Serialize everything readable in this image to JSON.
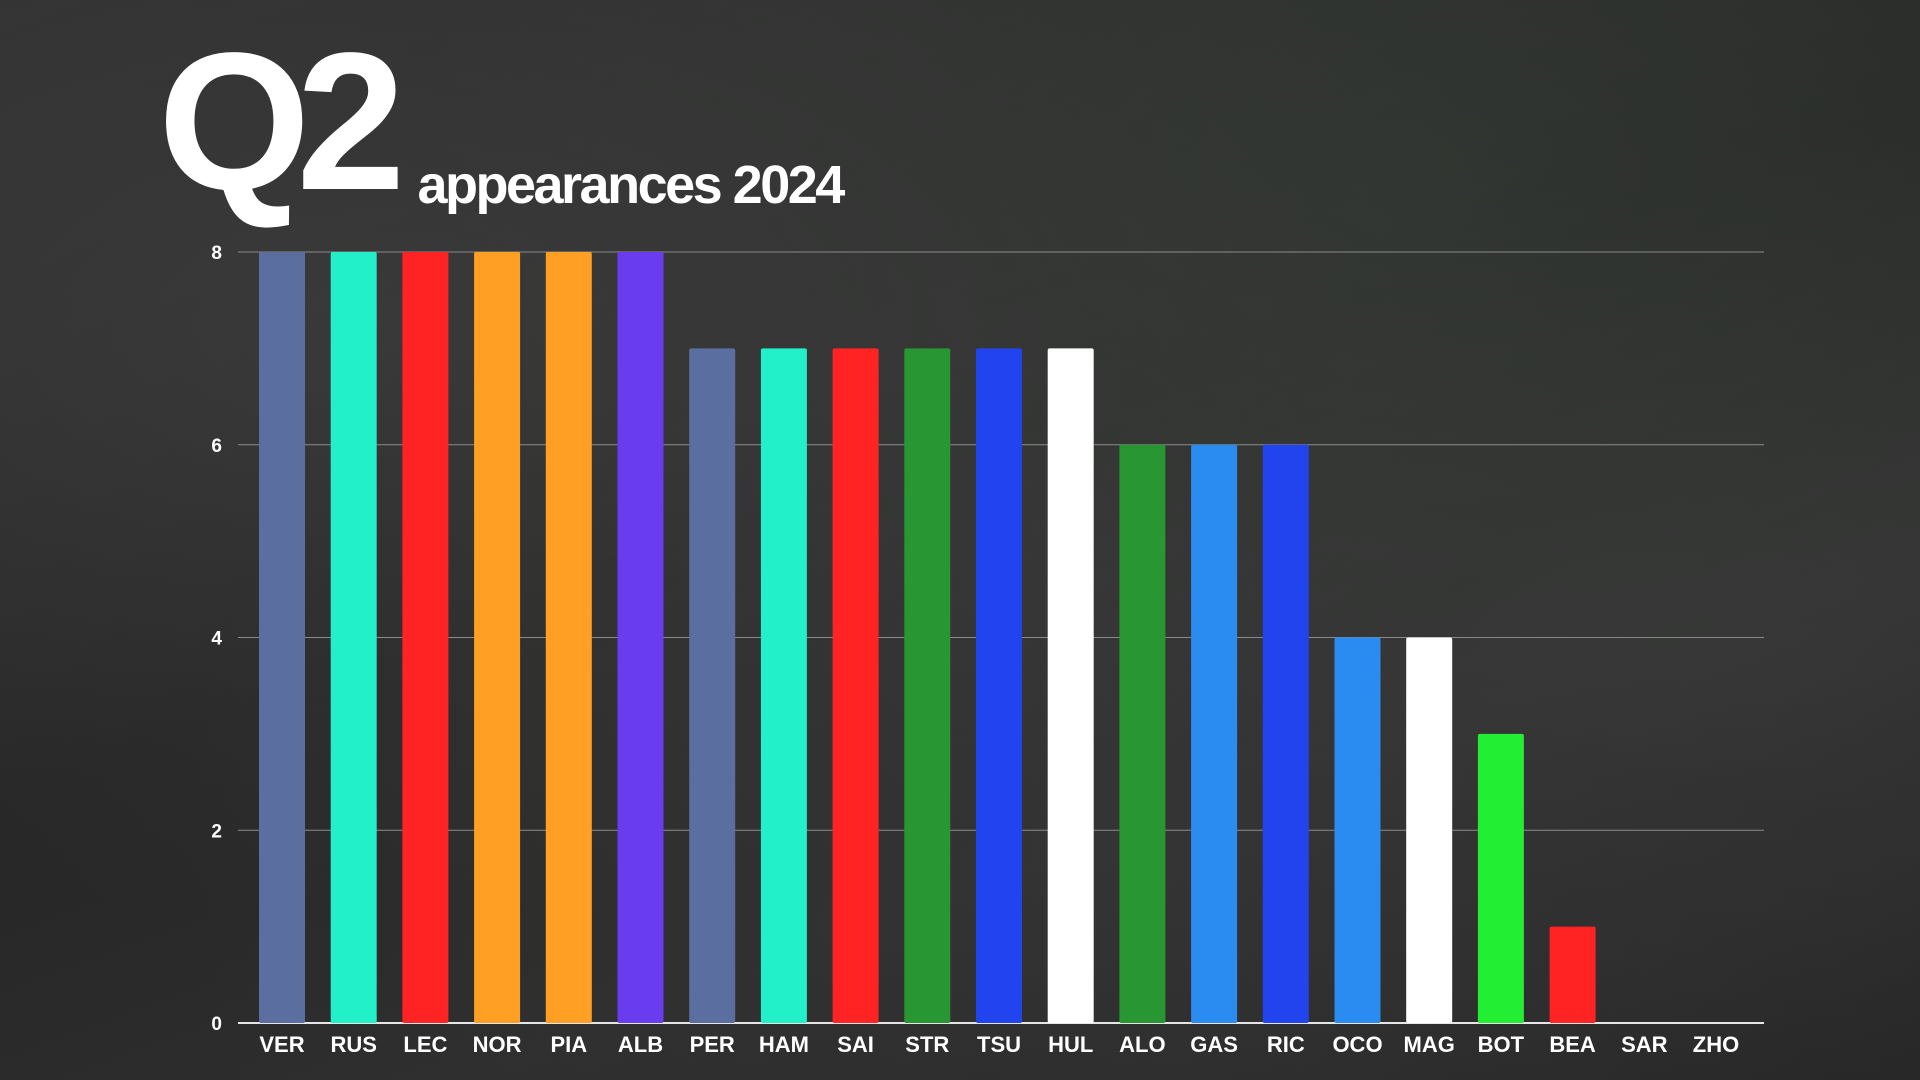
{
  "title": {
    "main": "Q2",
    "sub": "appearances 2024"
  },
  "chart_data": {
    "type": "bar",
    "categories": [
      "VER",
      "RUS",
      "LEC",
      "NOR",
      "PIA",
      "ALB",
      "PER",
      "HAM",
      "SAI",
      "STR",
      "TSU",
      "HUL",
      "ALO",
      "GAS",
      "RIC",
      "OCO",
      "MAG",
      "BOT",
      "BEA",
      "SAR",
      "ZHO"
    ],
    "values": [
      8,
      8,
      8,
      8,
      8,
      8,
      7,
      7,
      7,
      7,
      7,
      7,
      6,
      6,
      6,
      4,
      4,
      3,
      1,
      0,
      0
    ],
    "colors": [
      "#5a6fa0",
      "#22f0c8",
      "#ff2323",
      "#ffa024",
      "#ffa024",
      "#6a3cf0",
      "#5a6fa0",
      "#22f0c8",
      "#ff2323",
      "#289632",
      "#2244ee",
      "#ffffff",
      "#289632",
      "#2a8cf0",
      "#2244ee",
      "#2a8cf0",
      "#ffffff",
      "#22ee33",
      "#ff2323",
      "#2a8cf0",
      "#22ee33"
    ],
    "yticks": [
      0,
      2,
      4,
      6,
      8
    ],
    "ylim": [
      0,
      8
    ],
    "grid": true,
    "xlabel": "",
    "ylabel": ""
  }
}
